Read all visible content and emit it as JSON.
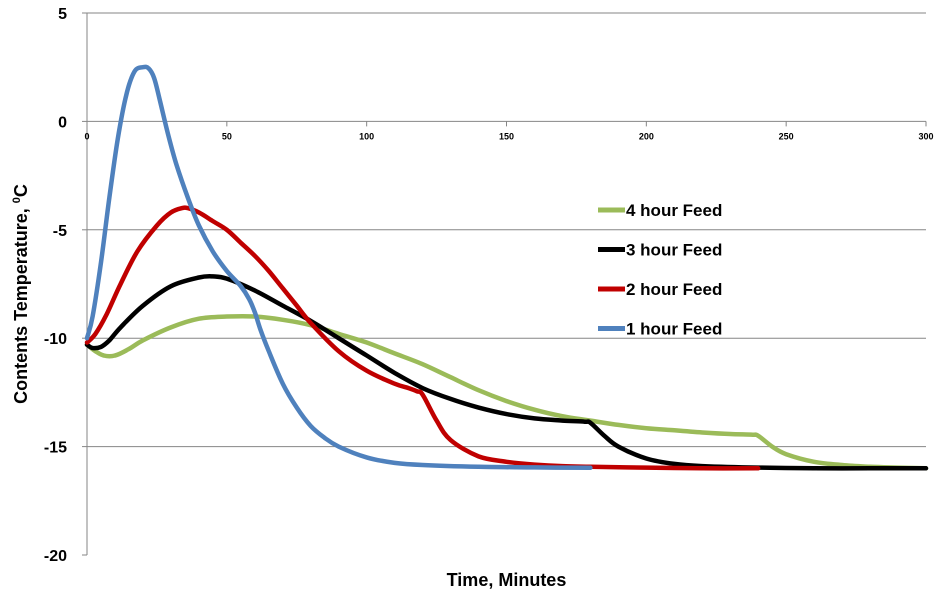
{
  "chart_data": {
    "type": "line",
    "title": "",
    "xlabel": "Time, Minutes",
    "ylabel_main": "Contents Temperature, ",
    "ylabel_sup": "0",
    "ylabel_unit": "C",
    "xlim": [
      0,
      300
    ],
    "ylim": [
      -20,
      5
    ],
    "xticks": [
      "0",
      "50",
      "100",
      "150",
      "200",
      "250",
      "300"
    ],
    "yticks": [
      "5",
      "0",
      "-5",
      "-10",
      "-15",
      "-20"
    ],
    "grid": "horizontal",
    "legend_position": "right-middle",
    "series": [
      {
        "name": "4 hour Feed",
        "color": "#9bbb59",
        "x": [
          0,
          3,
          6,
          10,
          15,
          20,
          30,
          40,
          50,
          60,
          70,
          80,
          90,
          100,
          110,
          120,
          130,
          140,
          150,
          160,
          170,
          180,
          190,
          200,
          210,
          220,
          230,
          238,
          240,
          245,
          250,
          260,
          270,
          280,
          290,
          300
        ],
        "y": [
          -10.3,
          -10.6,
          -10.8,
          -10.8,
          -10.5,
          -10.1,
          -9.5,
          -9.1,
          -9.0,
          -9.0,
          -9.15,
          -9.4,
          -9.8,
          -10.2,
          -10.7,
          -11.2,
          -11.8,
          -12.4,
          -12.9,
          -13.3,
          -13.6,
          -13.8,
          -14.0,
          -14.15,
          -14.25,
          -14.35,
          -14.42,
          -14.45,
          -14.5,
          -15.0,
          -15.35,
          -15.7,
          -15.85,
          -15.93,
          -15.97,
          -16.0
        ]
      },
      {
        "name": "3 hour Feed",
        "color": "#000000",
        "x": [
          0,
          2,
          5,
          8,
          12,
          20,
          30,
          40,
          45,
          50,
          60,
          70,
          80,
          90,
          100,
          110,
          120,
          130,
          140,
          150,
          160,
          170,
          178,
          180,
          185,
          190,
          200,
          210,
          220,
          240,
          260,
          280,
          300
        ],
        "y": [
          -10.3,
          -10.45,
          -10.4,
          -10.1,
          -9.5,
          -8.5,
          -7.6,
          -7.2,
          -7.15,
          -7.25,
          -7.8,
          -8.5,
          -9.2,
          -10.0,
          -10.8,
          -11.6,
          -12.3,
          -12.8,
          -13.2,
          -13.5,
          -13.7,
          -13.8,
          -13.85,
          -13.9,
          -14.5,
          -15.0,
          -15.55,
          -15.8,
          -15.9,
          -15.97,
          -16.0,
          -16.0,
          -16.0
        ]
      },
      {
        "name": "2 hour Feed",
        "color": "#c00000",
        "x": [
          0,
          3,
          7,
          12,
          18,
          25,
          30,
          34,
          36,
          40,
          45,
          50,
          55,
          60,
          65,
          70,
          75,
          80,
          90,
          100,
          110,
          115,
          118,
          120,
          125,
          130,
          140,
          150,
          160,
          170,
          180,
          200,
          220,
          240
        ],
        "y": [
          -10.2,
          -9.8,
          -8.9,
          -7.5,
          -6.0,
          -4.8,
          -4.2,
          -4.0,
          -4.0,
          -4.2,
          -4.6,
          -5.0,
          -5.6,
          -6.2,
          -6.9,
          -7.7,
          -8.5,
          -9.3,
          -10.6,
          -11.5,
          -12.1,
          -12.3,
          -12.45,
          -12.6,
          -13.8,
          -14.7,
          -15.45,
          -15.7,
          -15.83,
          -15.9,
          -15.93,
          -15.97,
          -16.0,
          -16.0
        ]
      },
      {
        "name": "1 hour Feed",
        "color": "#4f81bd",
        "x": [
          0,
          2,
          5,
          8,
          11,
          14,
          17,
          20,
          22,
          24,
          26,
          29,
          32,
          36,
          40,
          45,
          50,
          55,
          58,
          60,
          62,
          65,
          70,
          75,
          80,
          85,
          90,
          100,
          110,
          120,
          140,
          160,
          180
        ],
        "y": [
          -10.0,
          -9.0,
          -6.5,
          -3.5,
          -0.8,
          1.2,
          2.3,
          2.5,
          2.45,
          2.0,
          1.0,
          -0.6,
          -2.0,
          -3.5,
          -4.8,
          -6.0,
          -6.9,
          -7.6,
          -8.2,
          -8.8,
          -9.6,
          -10.6,
          -12.1,
          -13.2,
          -14.05,
          -14.6,
          -15.0,
          -15.5,
          -15.75,
          -15.85,
          -15.93,
          -15.96,
          -15.98
        ]
      }
    ]
  }
}
